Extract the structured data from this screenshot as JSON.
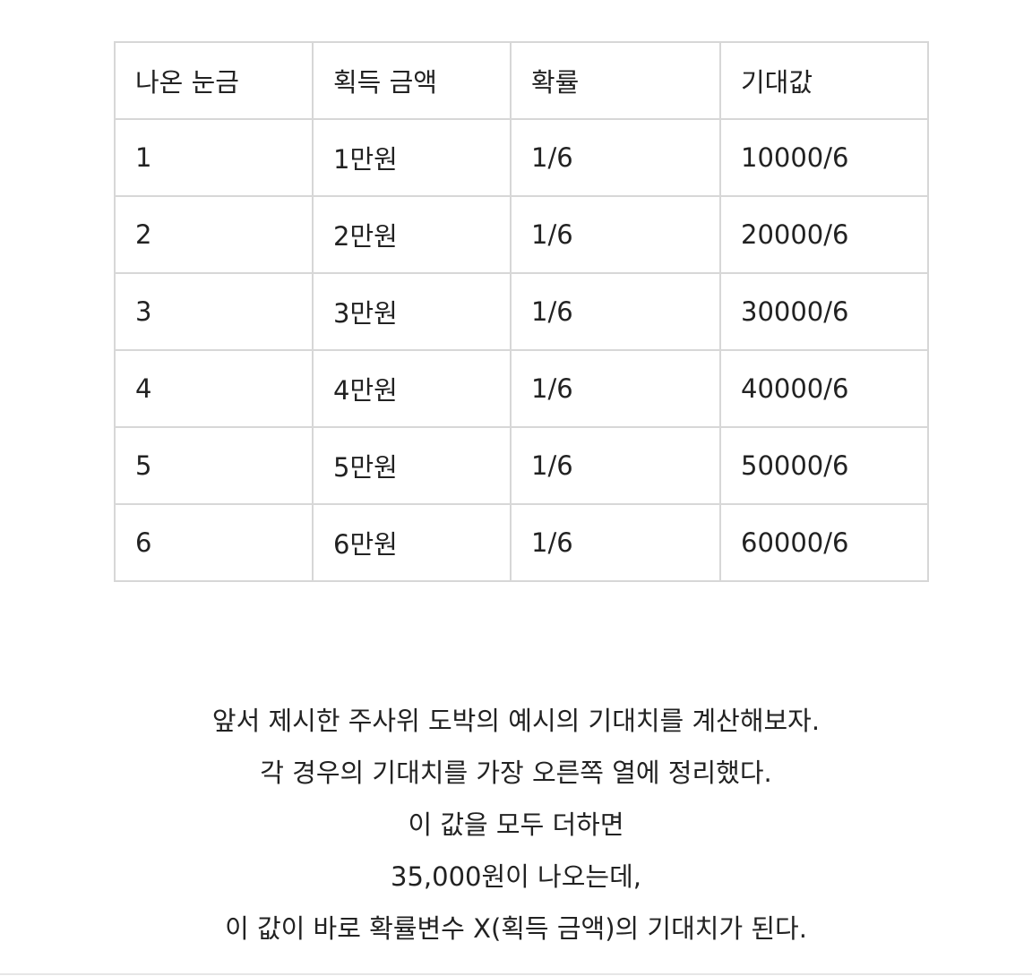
{
  "table": {
    "headers": [
      "나온 눈금",
      "획득 금액",
      "확률",
      "기대값"
    ],
    "rows": [
      [
        "1",
        "1만원",
        "1/6",
        "10000/6"
      ],
      [
        "2",
        "2만원",
        "1/6",
        "20000/6"
      ],
      [
        "3",
        "3만원",
        "1/6",
        "30000/6"
      ],
      [
        "4",
        "4만원",
        "1/6",
        "40000/6"
      ],
      [
        "5",
        "5만원",
        "1/6",
        "50000/6"
      ],
      [
        "6",
        "6만원",
        "1/6",
        "60000/6"
      ]
    ]
  },
  "paragraph": {
    "lines": [
      "앞서 제시한 주사위 도박의 예시의 기대치를 계산해보자.",
      "각 경우의 기대치를 가장 오른쪽 열에 정리했다.",
      "이 값을 모두 더하면",
      "35,000원이 나오는데,",
      "이 값이 바로 확률변수 X(획득 금액)의 기대치가 된다."
    ]
  }
}
